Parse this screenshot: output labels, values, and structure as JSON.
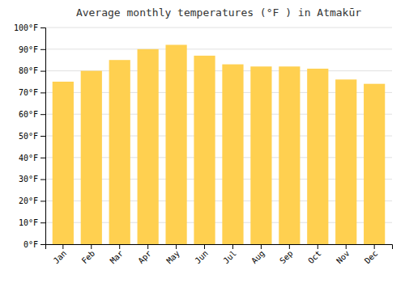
{
  "chart_data": {
    "type": "bar",
    "title": "Average monthly temperatures (°F ) in Atmakūr",
    "categories": [
      "Jan",
      "Feb",
      "Mar",
      "Apr",
      "May",
      "Jun",
      "Jul",
      "Aug",
      "Sep",
      "Oct",
      "Nov",
      "Dec"
    ],
    "values": [
      75,
      80,
      85,
      90,
      92,
      87,
      83,
      82,
      82,
      81,
      76,
      74
    ],
    "color": "#FFD050",
    "ylim": [
      0,
      100
    ],
    "yticks": [
      {
        "value": 0,
        "label": "0°F"
      },
      {
        "value": 10,
        "label": "10°F"
      },
      {
        "value": 20,
        "label": "20°F"
      },
      {
        "value": 30,
        "label": "30°F"
      },
      {
        "value": 40,
        "label": "40°F"
      },
      {
        "value": 50,
        "label": "50°F"
      },
      {
        "value": 60,
        "label": "60°F"
      },
      {
        "value": 70,
        "label": "70°F"
      },
      {
        "value": 80,
        "label": "80°F"
      },
      {
        "value": 90,
        "label": "90°F"
      },
      {
        "value": 100,
        "label": "100°F"
      }
    ],
    "grid": true
  }
}
